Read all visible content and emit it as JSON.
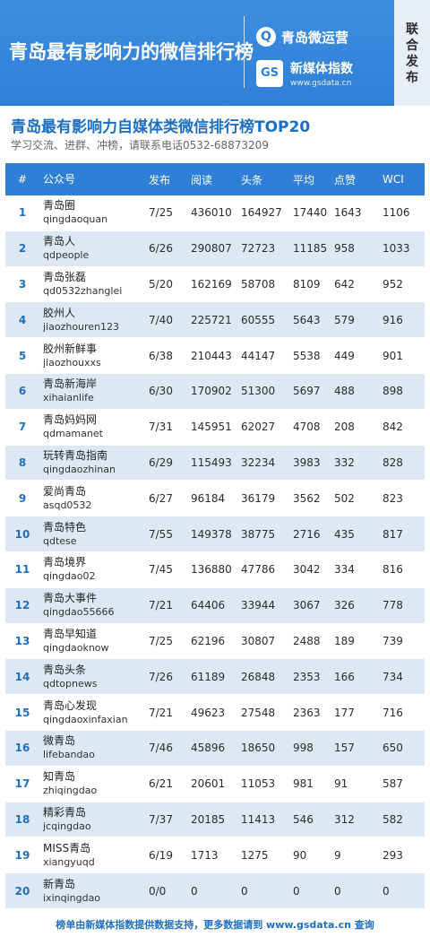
{
  "banner": {
    "title": "青岛最有影响力的微信排行榜",
    "brand_name": "青岛微运营",
    "brand_icon": "q-logo-icon",
    "gs_logo_label": "GS",
    "gs_name": "新媒体指数",
    "gs_url": "www.gsdata.cn",
    "joint_label": "联合发布",
    "colors": {
      "banner_blue": "#2f7fd6",
      "title_blue": "#1d6fc2",
      "stripe": "#dde8f4"
    }
  },
  "heading": {
    "title": "青岛最有影响力自媒体类微信排行榜TOP20",
    "subtitle": "学习交流、进群、冲榜，请联系电话0532-68873209"
  },
  "table": {
    "headers": {
      "rank": "#",
      "account": "公众号",
      "published": "发布",
      "reads": "阅读",
      "headline": "头条",
      "average": "平均",
      "likes": "点赞",
      "wci": "WCI"
    },
    "rows": [
      {
        "rank": "1",
        "name": "青岛圈",
        "id": "qingdaoquan",
        "published": "7/25",
        "reads": "436010",
        "headline": "164927",
        "average": "17440",
        "likes": "1643",
        "wci": "1106"
      },
      {
        "rank": "2",
        "name": "青岛人",
        "id": "qdpeople",
        "published": "6/26",
        "reads": "290807",
        "headline": "72723",
        "average": "11185",
        "likes": "958",
        "wci": "1033"
      },
      {
        "rank": "3",
        "name": "青岛张磊",
        "id": "qd0532zhanglei",
        "published": "5/20",
        "reads": "162169",
        "headline": "58708",
        "average": "8109",
        "likes": "642",
        "wci": "952"
      },
      {
        "rank": "4",
        "name": "胶州人",
        "id": "jiaozhouren123",
        "published": "7/40",
        "reads": "225721",
        "headline": "60555",
        "average": "5643",
        "likes": "579",
        "wci": "916"
      },
      {
        "rank": "5",
        "name": "胶州新鲜事",
        "id": "jiaozhouxxs",
        "published": "6/38",
        "reads": "210443",
        "headline": "44147",
        "average": "5538",
        "likes": "449",
        "wci": "901"
      },
      {
        "rank": "6",
        "name": "青岛新海岸",
        "id": "xihaianlife",
        "published": "6/30",
        "reads": "170902",
        "headline": "51300",
        "average": "5697",
        "likes": "488",
        "wci": "898"
      },
      {
        "rank": "7",
        "name": "青岛妈妈网",
        "id": "qdmamanet",
        "published": "7/31",
        "reads": "145951",
        "headline": "62027",
        "average": "4708",
        "likes": "208",
        "wci": "842"
      },
      {
        "rank": "8",
        "name": "玩转青岛指南",
        "id": "qingdaozhinan",
        "published": "6/29",
        "reads": "115493",
        "headline": "32234",
        "average": "3983",
        "likes": "332",
        "wci": "828"
      },
      {
        "rank": "9",
        "name": "爱尚青岛",
        "id": "asqd0532",
        "published": "6/27",
        "reads": "96184",
        "headline": "36179",
        "average": "3562",
        "likes": "502",
        "wci": "823"
      },
      {
        "rank": "10",
        "name": "青岛特色",
        "id": "qdtese",
        "published": "7/55",
        "reads": "149378",
        "headline": "38775",
        "average": "2716",
        "likes": "435",
        "wci": "817"
      },
      {
        "rank": "11",
        "name": "青岛境界",
        "id": "qingdao02",
        "published": "7/45",
        "reads": "136880",
        "headline": "47786",
        "average": "3042",
        "likes": "334",
        "wci": "816"
      },
      {
        "rank": "12",
        "name": "青岛大事件",
        "id": "qingdao55666",
        "published": "7/21",
        "reads": "64406",
        "headline": "33944",
        "average": "3067",
        "likes": "326",
        "wci": "778"
      },
      {
        "rank": "13",
        "name": "青岛早知道",
        "id": "qingdaoknow",
        "published": "7/25",
        "reads": "62196",
        "headline": "30807",
        "average": "2488",
        "likes": "189",
        "wci": "739"
      },
      {
        "rank": "14",
        "name": "青岛头条",
        "id": "qdtopnews",
        "published": "7/26",
        "reads": "61189",
        "headline": "26848",
        "average": "2353",
        "likes": "166",
        "wci": "734"
      },
      {
        "rank": "15",
        "name": "青岛心发现",
        "id": "qingdaoxinfaxian",
        "published": "7/21",
        "reads": "49623",
        "headline": "27548",
        "average": "2363",
        "likes": "177",
        "wci": "716"
      },
      {
        "rank": "16",
        "name": "微青岛",
        "id": "lifebandao",
        "published": "7/46",
        "reads": "45896",
        "headline": "18650",
        "average": "998",
        "likes": "157",
        "wci": "650"
      },
      {
        "rank": "17",
        "name": "知青岛",
        "id": "zhiqingdao",
        "published": "6/21",
        "reads": "20601",
        "headline": "11053",
        "average": "981",
        "likes": "91",
        "wci": "587"
      },
      {
        "rank": "18",
        "name": "精彩青岛",
        "id": "jcqingdao",
        "published": "7/37",
        "reads": "20185",
        "headline": "11413",
        "average": "546",
        "likes": "312",
        "wci": "582"
      },
      {
        "rank": "19",
        "name": "MISS青岛",
        "id": "xiangyuqd",
        "published": "6/19",
        "reads": "1713",
        "headline": "1275",
        "average": "90",
        "likes": "9",
        "wci": "293"
      },
      {
        "rank": "20",
        "name": "新青岛",
        "id": "ixinqingdao",
        "published": "0/0",
        "reads": "0",
        "headline": "0",
        "average": "0",
        "likes": "0",
        "wci": "0"
      }
    ]
  },
  "footer": {
    "text": "榜单由新媒体指数提供数据支持，更多数据请到 www.gsdata.cn 查询"
  }
}
